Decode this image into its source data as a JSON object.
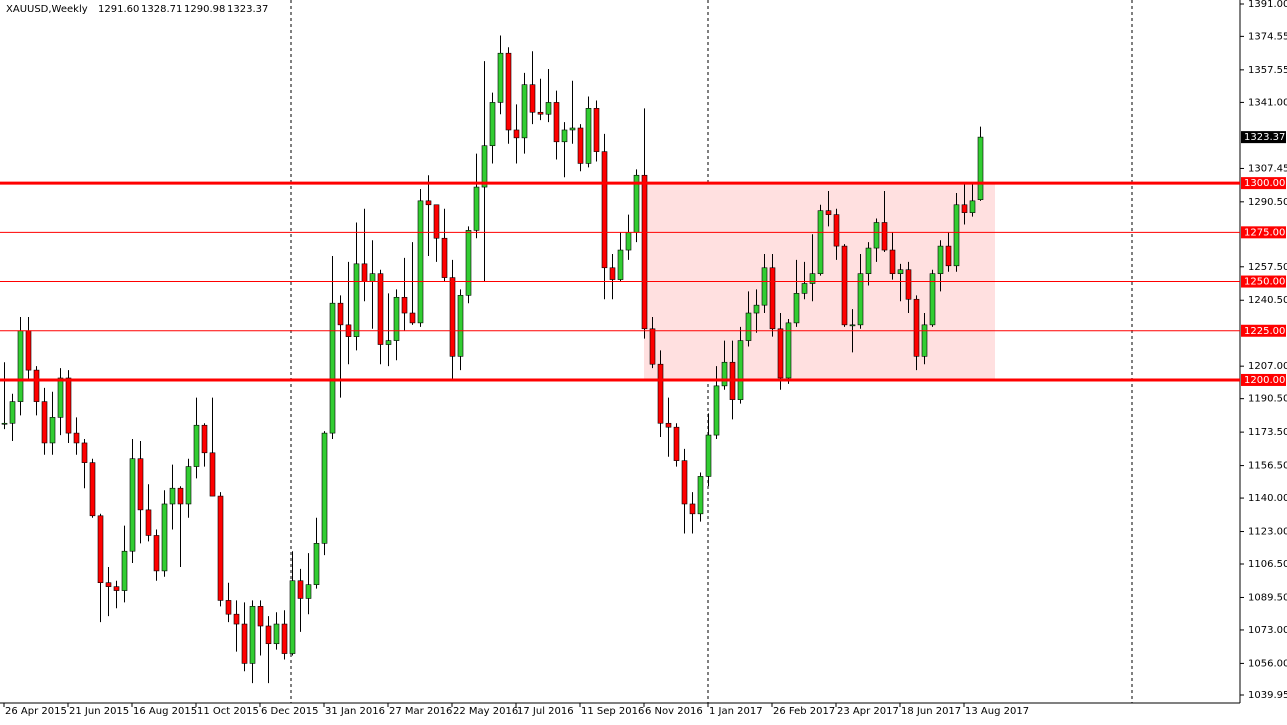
{
  "chart_data": {
    "type": "candlestick",
    "title": "XAUUSD,Weekly",
    "header_values": [
      "1291.60",
      "1328.71",
      "1290.98",
      "1323.37"
    ],
    "categories": [
      "26 Apr 2015",
      null,
      null,
      null,
      null,
      null,
      null,
      null,
      "21 Jun 2015",
      null,
      null,
      null,
      null,
      null,
      null,
      null,
      "16 Aug 2015",
      null,
      null,
      null,
      null,
      null,
      null,
      null,
      "11 Oct 2015",
      null,
      null,
      null,
      null,
      null,
      null,
      null,
      "6 Dec 2015",
      null,
      null,
      null,
      null,
      null,
      null,
      null,
      "31 Jan 2016",
      null,
      null,
      null,
      null,
      null,
      null,
      null,
      "27 Mar 2016",
      null,
      null,
      null,
      null,
      null,
      null,
      null,
      "22 May 2016",
      null,
      null,
      null,
      null,
      null,
      null,
      null,
      "17 Jul 2016",
      null,
      null,
      null,
      null,
      null,
      null,
      null,
      "11 Sep 2016",
      null,
      null,
      null,
      null,
      null,
      null,
      null,
      "6 Nov 2016",
      null,
      null,
      null,
      null,
      null,
      null,
      null,
      "1 Jan 2017",
      null,
      null,
      null,
      null,
      null,
      null,
      null,
      "26 Feb 2017",
      null,
      null,
      null,
      null,
      null,
      null,
      null,
      "23 Apr 2017",
      null,
      null,
      null,
      null,
      null,
      null,
      null,
      "18 Jun 2017",
      null,
      null,
      null,
      null,
      null,
      null,
      null,
      "13 Aug 2017",
      null,
      null
    ],
    "open": [
      1178,
      1178,
      1189,
      1225,
      1205,
      1189,
      1168,
      1181,
      1201,
      1173,
      1168,
      1158,
      1131,
      1097,
      1095,
      1093,
      1113,
      1160,
      1134,
      1121,
      1103,
      1137,
      1145,
      1137,
      1156,
      1177,
      1163,
      1141,
      1088,
      1081,
      1076,
      1056,
      1085,
      1075,
      1066,
      1076,
      1061,
      1098,
      1089,
      1096,
      1117,
      1173,
      1239,
      1228,
      1222,
      1259,
      1250,
      1254,
      1218,
      1220,
      1242,
      1234,
      1229,
      1291,
      1289,
      1272,
      1252,
      1212,
      1243,
      1276,
      1298,
      1319,
      1341,
      1366,
      1327,
      1323,
      1350,
      1336,
      1335,
      1341,
      1321,
      1327,
      1328,
      1310,
      1338,
      1316,
      1257,
      1251,
      1266,
      1275,
      1304,
      1226,
      1208,
      1178,
      1176,
      1159,
      1137,
      1132,
      1151,
      1172,
      1197,
      1209,
      1190,
      1220,
      1234,
      1238,
      1257,
      1226,
      1201,
      1229,
      1244,
      1249,
      1254,
      1286,
      1284,
      1268,
      1228,
      1228,
      1254,
      1267,
      1280,
      1266,
      1254,
      1256,
      1241,
      1212,
      1228,
      1254,
      1268,
      1258,
      1289,
      1285,
      1291.6
    ],
    "high": [
      1209,
      1193,
      1232,
      1232,
      1207,
      1196,
      1194,
      1206,
      1205,
      1181,
      1170,
      1160,
      1132,
      1105,
      1098,
      1126,
      1170,
      1169,
      1147,
      1124,
      1144,
      1157,
      1146,
      1160,
      1191,
      1178,
      1191,
      1143,
      1097,
      1088,
      1087,
      1088,
      1088,
      1080,
      1082,
      1083,
      1113,
      1104,
      1112,
      1130,
      1174,
      1263,
      1243,
      1260,
      1280,
      1287,
      1271,
      1256,
      1244,
      1246,
      1262,
      1270,
      1297,
      1304,
      1289,
      1287,
      1261,
      1246,
      1278,
      1315,
      1362,
      1346,
      1375,
      1369,
      1340,
      1356,
      1367,
      1353,
      1358,
      1347,
      1331,
      1352,
      1330,
      1344,
      1342,
      1325,
      1264,
      1275,
      1284,
      1307,
      1338,
      1232,
      1215,
      1191,
      1178,
      1165,
      1143,
      1153,
      1183,
      1207,
      1220,
      1220,
      1227,
      1245,
      1246,
      1264,
      1264,
      1234,
      1231,
      1261,
      1260,
      1274,
      1289,
      1296,
      1287,
      1269,
      1236,
      1264,
      1270,
      1282,
      1296,
      1275,
      1259,
      1260,
      1243,
      1234,
      1256,
      1271,
      1275,
      1295,
      1300,
      1300,
      1328.71
    ],
    "low": [
      1175,
      1169,
      1182,
      1200,
      1182,
      1162,
      1162,
      1172,
      1168,
      1162,
      1145,
      1130,
      1077,
      1080,
      1084,
      1087,
      1107,
      1117,
      1118,
      1098,
      1100,
      1124,
      1105,
      1130,
      1150,
      1156,
      1141,
      1085,
      1077,
      1062,
      1052,
      1046,
      1060,
      1046,
      1063,
      1058,
      1060,
      1072,
      1081,
      1094,
      1111,
      1170,
      1191,
      1208,
      1215,
      1240,
      1226,
      1208,
      1207,
      1210,
      1225,
      1228,
      1227,
      1263,
      1260,
      1250,
      1200,
      1205,
      1239,
      1272,
      1250,
      1310,
      1335,
      1320,
      1310,
      1315,
      1330,
      1332,
      1331,
      1312,
      1303,
      1320,
      1306,
      1308,
      1311,
      1241,
      1241,
      1250,
      1261,
      1270,
      1221,
      1206,
      1171,
      1161,
      1156,
      1122,
      1122,
      1128,
      1146,
      1170,
      1195,
      1180,
      1188,
      1217,
      1224,
      1234,
      1222,
      1195,
      1198,
      1227,
      1241,
      1240,
      1253,
      1278,
      1261,
      1227,
      1214,
      1226,
      1248,
      1260,
      1265,
      1251,
      1240,
      1234,
      1205,
      1208,
      1227,
      1245,
      1255,
      1255,
      1279,
      1283,
      1290.98
    ],
    "close": [
      1178,
      1189,
      1225,
      1205,
      1189,
      1168,
      1181,
      1201,
      1173,
      1168,
      1158,
      1131,
      1097,
      1095,
      1093,
      1113,
      1160,
      1134,
      1121,
      1103,
      1137,
      1145,
      1137,
      1156,
      1177,
      1163,
      1141,
      1088,
      1081,
      1076,
      1056,
      1085,
      1075,
      1066,
      1076,
      1061,
      1098,
      1089,
      1096,
      1117,
      1173,
      1239,
      1228,
      1222,
      1259,
      1250,
      1254,
      1218,
      1220,
      1242,
      1234,
      1229,
      1291,
      1289,
      1272,
      1252,
      1212,
      1243,
      1276,
      1298,
      1319,
      1341,
      1366,
      1327,
      1323,
      1350,
      1336,
      1335,
      1341,
      1321,
      1327,
      1328,
      1310,
      1338,
      1316,
      1257,
      1251,
      1266,
      1275,
      1304,
      1226,
      1208,
      1178,
      1176,
      1159,
      1137,
      1132,
      1151,
      1172,
      1197,
      1209,
      1190,
      1220,
      1234,
      1238,
      1257,
      1226,
      1201,
      1229,
      1244,
      1249,
      1254,
      1286,
      1284,
      1268,
      1228,
      1228,
      1254,
      1267,
      1280,
      1266,
      1254,
      1256,
      1241,
      1212,
      1228,
      1254,
      1268,
      1258,
      1289,
      1285,
      1291,
      1323.37
    ],
    "bull_color": "#32cd32",
    "bear_color": "#ff0000",
    "ylim": [
      1039.95,
      1391
    ],
    "yticks": [
      {
        "value": 1391,
        "label": "1391.00"
      },
      {
        "value": 1374.55,
        "label": "1374.55"
      },
      {
        "value": 1357.55,
        "label": "1357.55"
      },
      {
        "value": 1341,
        "label": "1341.00"
      },
      {
        "value": 1307.45,
        "label": "1307.45"
      },
      {
        "value": 1290.5,
        "label": "1290.50"
      },
      {
        "value": 1257.5,
        "label": "1257.50"
      },
      {
        "value": 1240.5,
        "label": "1240.50"
      },
      {
        "value": 1207,
        "label": "1207.00"
      },
      {
        "value": 1190.5,
        "label": "1190.50"
      },
      {
        "value": 1173.5,
        "label": "1173.50"
      },
      {
        "value": 1156.5,
        "label": "1156.50"
      },
      {
        "value": 1140,
        "label": "1140.00"
      },
      {
        "value": 1123,
        "label": "1123.00"
      },
      {
        "value": 1106.5,
        "label": "1106.50"
      },
      {
        "value": 1089.5,
        "label": "1089.50"
      },
      {
        "value": 1073,
        "label": "1073.00"
      },
      {
        "value": 1056,
        "label": "1056.00"
      },
      {
        "value": 1039.95,
        "label": "1039.95"
      }
    ],
    "levels": [
      {
        "value": 1300,
        "label": "1300.00",
        "style": "thick"
      },
      {
        "value": 1275,
        "label": "1275.00",
        "style": "thin"
      },
      {
        "value": 1250,
        "label": "1250.00",
        "style": "thin"
      },
      {
        "value": 1225,
        "label": "1225.00",
        "style": "thin"
      },
      {
        "value": 1200,
        "label": "1200.00",
        "style": "thick"
      }
    ],
    "level_color": "#ff0000",
    "zone": {
      "from": 1200,
      "to": 1300,
      "start": "6 Nov 2016",
      "color": "#ffe0e0"
    }
  }
}
